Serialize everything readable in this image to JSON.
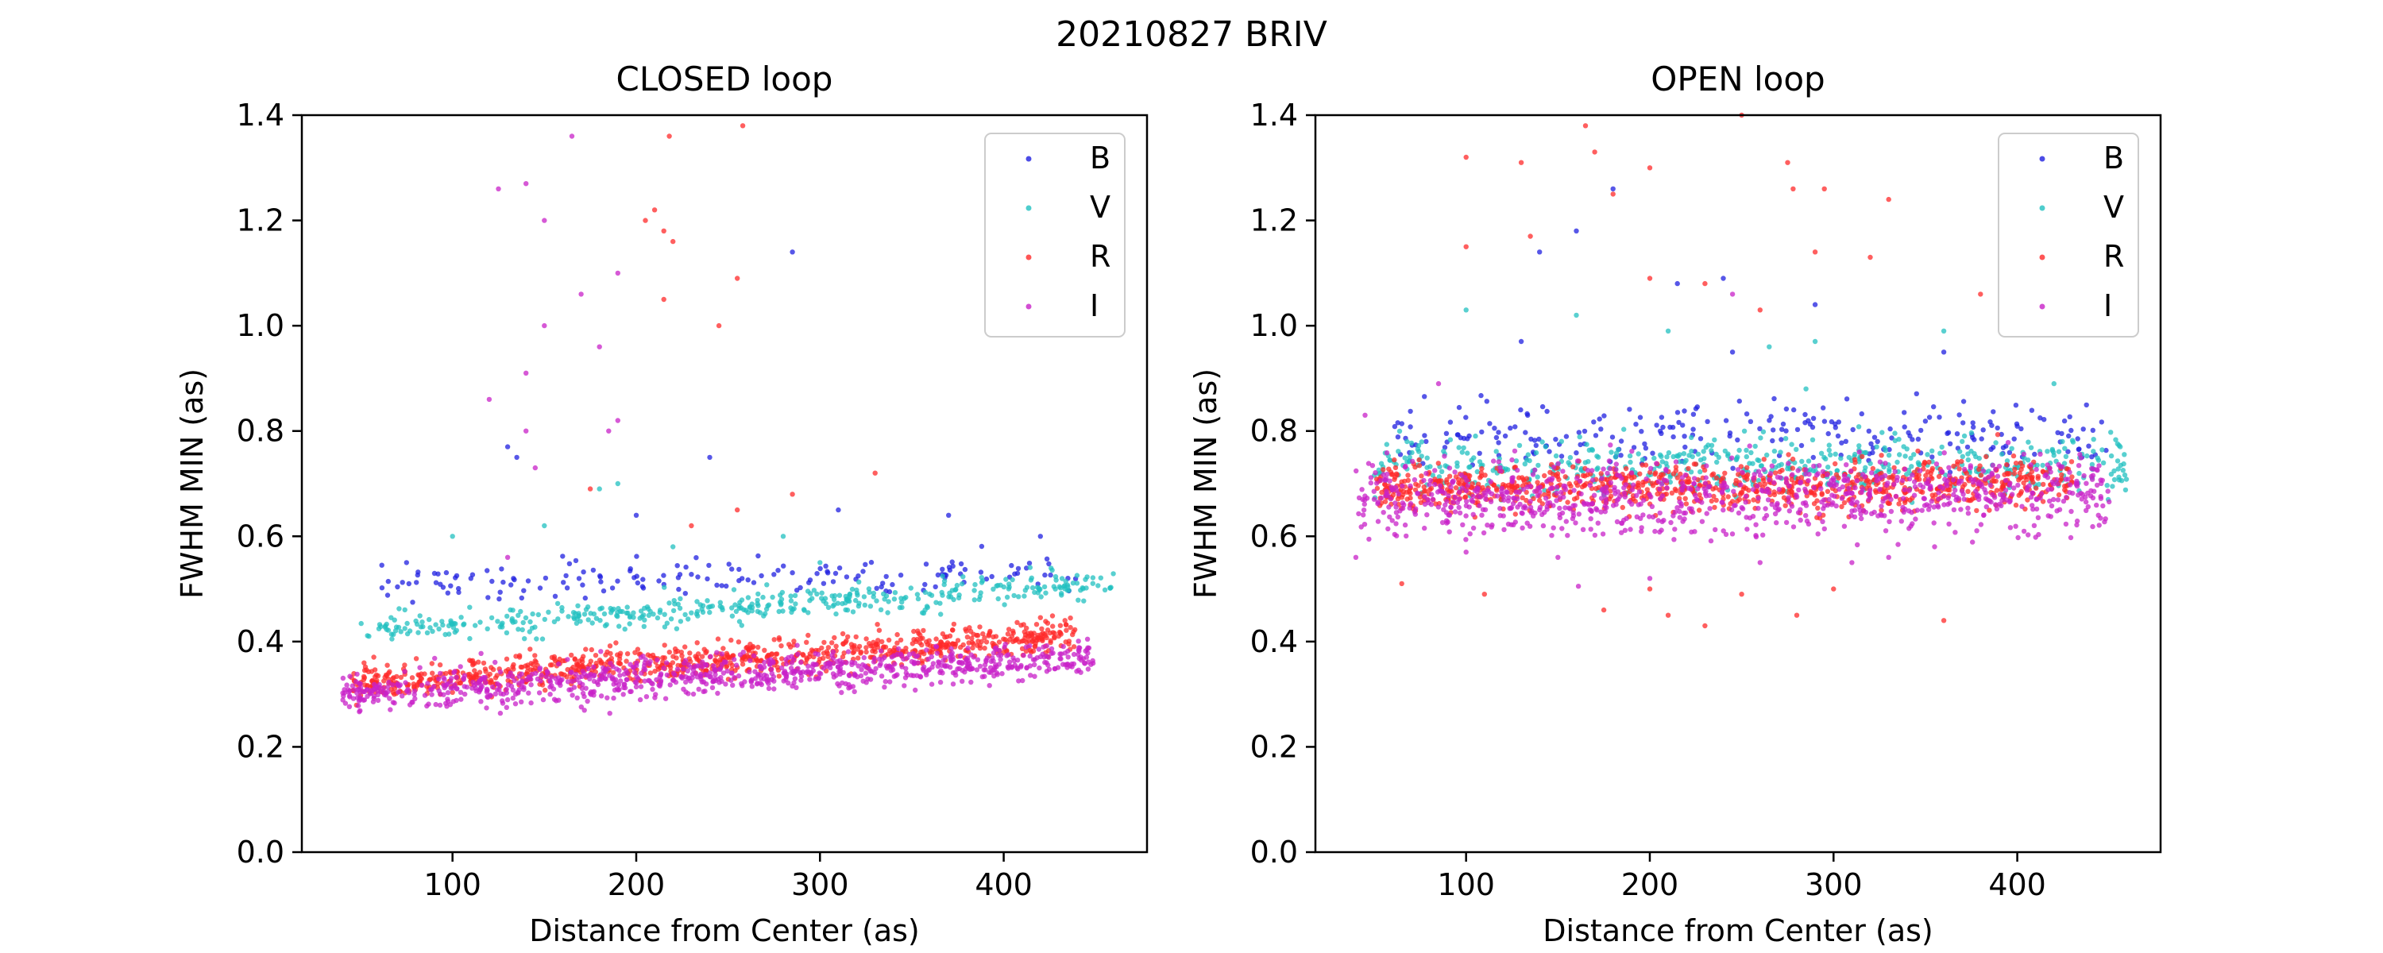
{
  "figure": {
    "suptitle": "20210827 BRIV"
  },
  "chart_data": [
    {
      "type": "scatter",
      "title": "CLOSED loop",
      "xlabel": "Distance from Center (as)",
      "ylabel": "FWHM MIN (as)",
      "xlim": [
        18,
        478
      ],
      "ylim": [
        0,
        1.4
      ],
      "xticks": [
        100,
        200,
        300,
        400
      ],
      "yticks": [
        0.0,
        0.2,
        0.4,
        0.6,
        0.8,
        1.0,
        1.2,
        1.4
      ],
      "legend": "top-right",
      "grid": false,
      "series": [
        {
          "name": "B",
          "color": "#1f1fe0",
          "bands": [
            {
              "x": [
                60,
                440
              ],
              "y": [
                0.51,
                0.53
              ],
              "sd": 0.018,
              "n": 160
            }
          ],
          "outliers": [
            [
              135,
              0.75
            ],
            [
              240,
              0.75
            ],
            [
              200,
              0.64
            ],
            [
              130,
              0.77
            ],
            [
              285,
              1.14
            ],
            [
              310,
              0.65
            ],
            [
              370,
              0.64
            ],
            [
              75,
              0.55
            ],
            [
              110,
              0.52
            ],
            [
              420,
              0.6
            ]
          ]
        },
        {
          "name": "V",
          "color": "#22c0c0",
          "bands": [
            {
              "x": [
                50,
                460
              ],
              "y": [
                0.42,
                0.51
              ],
              "sd": 0.014,
              "n": 420
            }
          ],
          "outliers": [
            [
              100,
              0.6
            ],
            [
              150,
              0.62
            ],
            [
              180,
              0.69
            ],
            [
              190,
              0.7
            ],
            [
              280,
              0.6
            ],
            [
              220,
              0.58
            ],
            [
              300,
              0.55
            ]
          ]
        },
        {
          "name": "R",
          "color": "#ff2a2a",
          "bands": [
            {
              "x": [
                45,
                440
              ],
              "y": [
                0.32,
                0.41
              ],
              "sd": 0.016,
              "n": 900
            }
          ],
          "outliers": [
            [
              210,
              1.22
            ],
            [
              215,
              1.18
            ],
            [
              218,
              1.36
            ],
            [
              220,
              1.16
            ],
            [
              215,
              1.05
            ],
            [
              245,
              1.0
            ],
            [
              255,
              1.09
            ],
            [
              258,
              1.38
            ],
            [
              230,
              0.62
            ],
            [
              330,
              0.72
            ],
            [
              175,
              0.69
            ],
            [
              255,
              0.65
            ],
            [
              285,
              0.68
            ],
            [
              205,
              1.2
            ]
          ]
        },
        {
          "name": "I",
          "color": "#c822c8",
          "bands": [
            {
              "x": [
                40,
                450
              ],
              "y": [
                0.3,
                0.37
              ],
              "sd": 0.018,
              "n": 900
            }
          ],
          "outliers": [
            [
              165,
              1.36
            ],
            [
              150,
              1.2
            ],
            [
              140,
              1.27
            ],
            [
              125,
              1.26
            ],
            [
              150,
              1.0
            ],
            [
              140,
              0.91
            ],
            [
              120,
              0.86
            ],
            [
              140,
              0.8
            ],
            [
              190,
              1.1
            ],
            [
              170,
              1.06
            ],
            [
              180,
              0.96
            ],
            [
              190,
              0.82
            ],
            [
              185,
              0.8
            ],
            [
              145,
              0.73
            ],
            [
              130,
              0.56
            ]
          ]
        }
      ]
    },
    {
      "type": "scatter",
      "title": "OPEN loop",
      "xlabel": "Distance from Center (as)",
      "ylabel": "FWHM MIN (as)",
      "xlim": [
        18,
        478
      ],
      "ylim": [
        0,
        1.4
      ],
      "xticks": [
        100,
        200,
        300,
        400
      ],
      "yticks": [
        0.0,
        0.2,
        0.4,
        0.6,
        0.8,
        1.0,
        1.2,
        1.4
      ],
      "legend": "top-right",
      "grid": false,
      "series": [
        {
          "name": "B",
          "color": "#1f1fe0",
          "bands": [
            {
              "x": [
                60,
                450
              ],
              "y": [
                0.79,
                0.8
              ],
              "sd": 0.028,
              "n": 240
            }
          ],
          "outliers": [
            [
              180,
              1.26
            ],
            [
              160,
              1.18
            ],
            [
              215,
              1.08
            ],
            [
              240,
              1.09
            ],
            [
              130,
              0.97
            ],
            [
              360,
              0.95
            ],
            [
              245,
              0.95
            ],
            [
              140,
              1.14
            ],
            [
              290,
              1.04
            ]
          ]
        },
        {
          "name": "V",
          "color": "#22c0c0",
          "bands": [
            {
              "x": [
                50,
                460
              ],
              "y": [
                0.73,
                0.74
              ],
              "sd": 0.025,
              "n": 520
            }
          ],
          "outliers": [
            [
              100,
              1.03
            ],
            [
              160,
              1.02
            ],
            [
              210,
              0.99
            ],
            [
              290,
              0.97
            ],
            [
              265,
              0.96
            ],
            [
              360,
              0.99
            ],
            [
              285,
              0.88
            ],
            [
              420,
              0.89
            ]
          ]
        },
        {
          "name": "R",
          "color": "#ff2a2a",
          "bands": [
            {
              "x": [
                50,
                430
              ],
              "y": [
                0.69,
                0.7
              ],
              "sd": 0.022,
              "n": 900
            }
          ],
          "outliers": [
            [
              100,
              1.32
            ],
            [
              130,
              1.31
            ],
            [
              165,
              1.38
            ],
            [
              170,
              1.33
            ],
            [
              200,
              1.3
            ],
            [
              250,
              1.4
            ],
            [
              275,
              1.31
            ],
            [
              278,
              1.26
            ],
            [
              295,
              1.26
            ],
            [
              330,
              1.24
            ],
            [
              100,
              1.15
            ],
            [
              135,
              1.17
            ],
            [
              180,
              1.25
            ],
            [
              200,
              1.09
            ],
            [
              230,
              1.08
            ],
            [
              260,
              1.03
            ],
            [
              290,
              1.14
            ],
            [
              320,
              1.13
            ],
            [
              380,
              1.06
            ],
            [
              210,
              0.45
            ],
            [
              230,
              0.43
            ],
            [
              280,
              0.45
            ],
            [
              360,
              0.44
            ],
            [
              200,
              0.5
            ],
            [
              175,
              0.46
            ],
            [
              250,
              0.49
            ],
            [
              110,
              0.49
            ],
            [
              65,
              0.51
            ],
            [
              300,
              0.5
            ]
          ]
        },
        {
          "name": "I",
          "color": "#c822c8",
          "bands": [
            {
              "x": [
                40,
                450
              ],
              "y": [
                0.67,
                0.68
              ],
              "sd": 0.035,
              "n": 900
            }
          ],
          "outliers": [
            [
              40,
              0.56
            ],
            [
              45,
              0.83
            ],
            [
              85,
              0.89
            ],
            [
              100,
              0.57
            ],
            [
              150,
              0.56
            ],
            [
              200,
              0.52
            ],
            [
              260,
              0.55
            ],
            [
              310,
              0.55
            ],
            [
              330,
              0.56
            ],
            [
              355,
              0.58
            ],
            [
              245,
              1.06
            ]
          ]
        }
      ]
    }
  ]
}
